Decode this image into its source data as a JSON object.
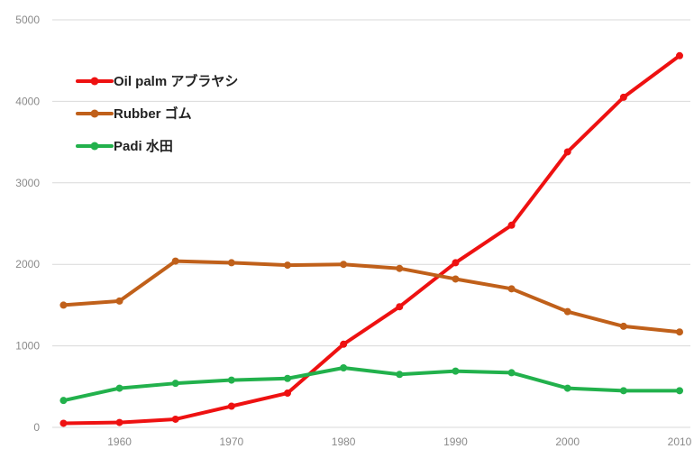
{
  "chart_data": {
    "type": "line",
    "title": "",
    "xlabel": "",
    "ylabel": "",
    "x": [
      1955,
      1960,
      1965,
      1970,
      1975,
      1980,
      1985,
      1990,
      1995,
      2000,
      2005,
      2010
    ],
    "xticks": [
      "1960",
      "1970",
      "1980",
      "1990",
      "2000",
      "2010"
    ],
    "xtick_values": [
      1960,
      1970,
      1980,
      1990,
      2000,
      2010
    ],
    "yticks": [
      "0",
      "1000",
      "2000",
      "3000",
      "4000",
      "5000"
    ],
    "ytick_values": [
      0,
      1000,
      2000,
      3000,
      4000,
      5000
    ],
    "xlim": [
      1954,
      2010
    ],
    "ylim": [
      0,
      5000
    ],
    "grid": "horizontal",
    "legend_position": "top-left",
    "series": [
      {
        "name": "Oil palm アブラヤシ",
        "color": "#ee1111",
        "values": [
          50,
          60,
          100,
          260,
          420,
          1020,
          1480,
          2020,
          2480,
          3380,
          4050,
          4560
        ]
      },
      {
        "name": "Rubber ゴム",
        "color": "#c0601a",
        "values": [
          1500,
          1550,
          2040,
          2020,
          1990,
          2000,
          1950,
          1820,
          1700,
          1420,
          1240,
          1170
        ]
      },
      {
        "name": "Padi 水田",
        "color": "#22b14c",
        "values": [
          330,
          480,
          540,
          580,
          600,
          730,
          650,
          690,
          670,
          480,
          450,
          450
        ]
      }
    ]
  }
}
